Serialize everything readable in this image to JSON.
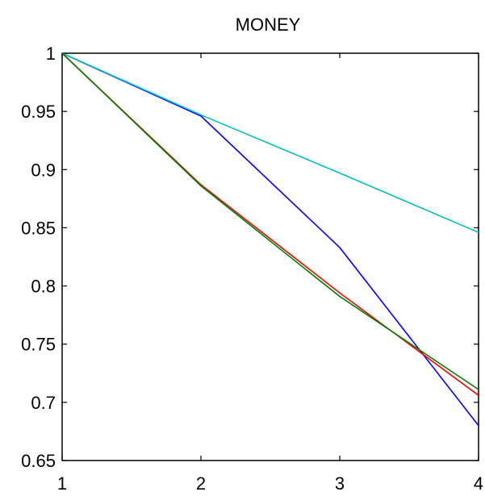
{
  "chart_data": {
    "type": "line",
    "title": "MONEY",
    "xlabel": "",
    "ylabel": "",
    "x": [
      1,
      2,
      3,
      4
    ],
    "xlim": [
      1,
      4
    ],
    "ylim": [
      0.65,
      1
    ],
    "xticks": [
      "1",
      "2",
      "3",
      "4"
    ],
    "yticks": [
      "0.65",
      "0.7",
      "0.75",
      "0.8",
      "0.85",
      "0.9",
      "0.95",
      "1"
    ],
    "grid": false,
    "series": [
      {
        "color": "#0000ff",
        "values": [
          1.0,
          0.946,
          0.833,
          0.68
        ]
      },
      {
        "color": "#00bfbf",
        "values": [
          1.0,
          0.947,
          0.897,
          0.846
        ]
      },
      {
        "color": "#ff0000",
        "values": [
          1.0,
          0.887,
          0.794,
          0.706
        ]
      },
      {
        "color": "#008000",
        "values": [
          1.0,
          0.886,
          0.791,
          0.711
        ]
      }
    ]
  }
}
